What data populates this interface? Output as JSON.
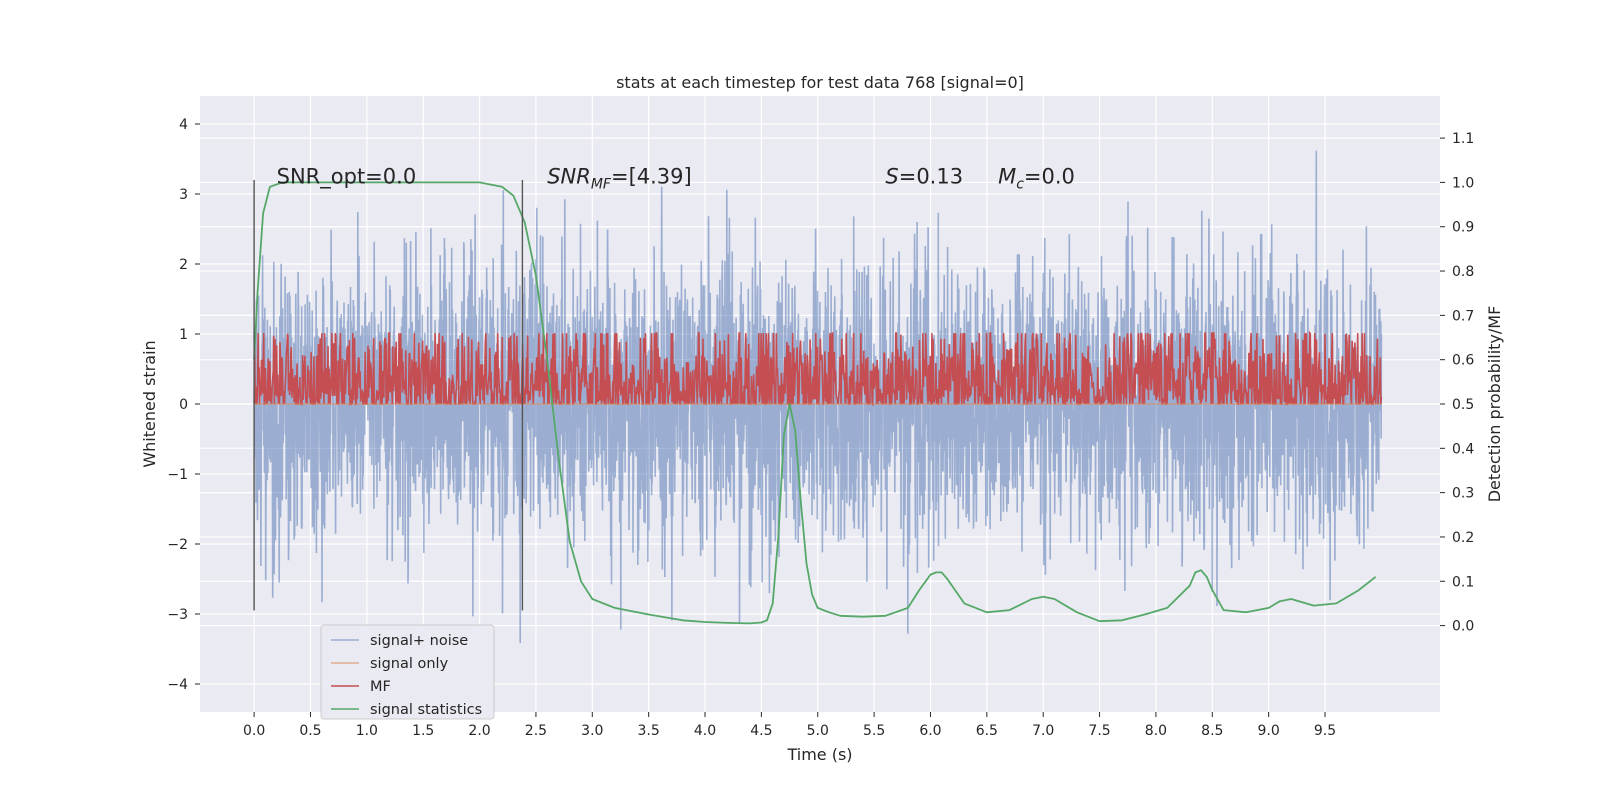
{
  "chart_data": {
    "type": "line",
    "title": "stats at each timestep for test data 768 [signal=0]",
    "xlabel": "Time (s)",
    "ylabel": "Whitened strain",
    "y2label": "Detection probability/MF",
    "xlim": [
      -0.48,
      10.52
    ],
    "ylim": [
      -4.4,
      4.4
    ],
    "y2lim": [
      -0.195,
      1.195
    ],
    "xticks": [
      "0.0",
      "0.5",
      "1.0",
      "1.5",
      "2.0",
      "2.5",
      "3.0",
      "3.5",
      "4.0",
      "4.5",
      "5.0",
      "5.5",
      "6.0",
      "6.5",
      "7.0",
      "7.5",
      "8.0",
      "8.5",
      "9.0",
      "9.5"
    ],
    "yticks": [
      "4",
      "3",
      "2",
      "1",
      "0",
      "−1",
      "−2",
      "−3",
      "−4"
    ],
    "y2ticks": [
      "0.0",
      "0.1",
      "0.2",
      "0.3",
      "0.4",
      "0.5",
      "0.6",
      "0.7",
      "0.8",
      "0.9",
      "1.0",
      "1.1"
    ],
    "grid": true,
    "legend_position": "lower-left",
    "colors": {
      "background": "#eaeaf2",
      "noise": "#4c72b0",
      "signal": "#dd8452",
      "mf": "#c44e52",
      "stats": "#55a868",
      "vline": "#555555"
    },
    "annotations": [
      {
        "kind": "plain",
        "text": "SNR_opt=0.0",
        "x": 0.2,
        "y": 3.15
      },
      {
        "kind": "sub",
        "main": "SNR",
        "sub": "MF",
        "rest": "=[4.39]",
        "x": 2.6,
        "y": 3.15
      },
      {
        "kind": "sym",
        "main": "S",
        "rest": "=0.13",
        "x": 5.6,
        "y": 3.15
      },
      {
        "kind": "subsym",
        "main": "M",
        "sub": "c",
        "rest": "=0.0",
        "x": 6.6,
        "y": 3.15
      }
    ],
    "vlines": [
      {
        "x": 0.0,
        "y_from": -2.95,
        "y_to": 3.2
      },
      {
        "x": 2.38,
        "y_from": -2.95,
        "y_to": 3.2
      }
    ],
    "series": [
      {
        "name": "signal+ noise",
        "key": "noise",
        "x_range": [
          0.0,
          10.0
        ],
        "samples": 4000,
        "seed": 768,
        "sigma": 1.0,
        "mean": 0.0,
        "axis": "left"
      },
      {
        "name": "signal only",
        "key": "signal",
        "axis": "left",
        "x": [
          0.0,
          10.0
        ],
        "y": [
          0.0,
          0.0
        ]
      },
      {
        "name": "MF",
        "key": "mf",
        "x_range": [
          0.0,
          10.0
        ],
        "samples": 2000,
        "seed": 42,
        "axis": "right",
        "base": 0.535,
        "spread": 0.08
      },
      {
        "name": "signal statistics",
        "key": "stats",
        "axis": "right",
        "x": [
          0.0,
          0.03,
          0.08,
          0.14,
          0.25,
          0.5,
          1.0,
          1.5,
          2.0,
          2.1,
          2.2,
          2.3,
          2.4,
          2.5,
          2.6,
          2.7,
          2.8,
          2.9,
          3.0,
          3.2,
          3.5,
          3.8,
          4.0,
          4.2,
          4.4,
          4.5,
          4.55,
          4.6,
          4.65,
          4.7,
          4.75,
          4.8,
          4.85,
          4.9,
          4.95,
          5.0,
          5.1,
          5.2,
          5.4,
          5.6,
          5.8,
          5.9,
          6.0,
          6.05,
          6.1,
          6.15,
          6.3,
          6.5,
          6.7,
          6.9,
          7.0,
          7.1,
          7.3,
          7.5,
          7.7,
          7.9,
          8.1,
          8.3,
          8.35,
          8.4,
          8.45,
          8.5,
          8.6,
          8.8,
          9.0,
          9.1,
          9.2,
          9.4,
          9.6,
          9.8,
          9.95
        ],
        "y": [
          0.6,
          0.75,
          0.93,
          0.99,
          1.0,
          1.0,
          1.0,
          1.0,
          1.0,
          0.995,
          0.99,
          0.97,
          0.91,
          0.79,
          0.6,
          0.38,
          0.19,
          0.1,
          0.06,
          0.04,
          0.025,
          0.012,
          0.008,
          0.006,
          0.005,
          0.007,
          0.012,
          0.05,
          0.2,
          0.43,
          0.5,
          0.44,
          0.28,
          0.14,
          0.07,
          0.04,
          0.03,
          0.022,
          0.02,
          0.022,
          0.04,
          0.08,
          0.115,
          0.12,
          0.12,
          0.105,
          0.05,
          0.03,
          0.035,
          0.06,
          0.065,
          0.06,
          0.03,
          0.01,
          0.012,
          0.025,
          0.04,
          0.09,
          0.12,
          0.125,
          0.11,
          0.08,
          0.035,
          0.03,
          0.04,
          0.055,
          0.06,
          0.045,
          0.05,
          0.08,
          0.11
        ]
      }
    ]
  }
}
